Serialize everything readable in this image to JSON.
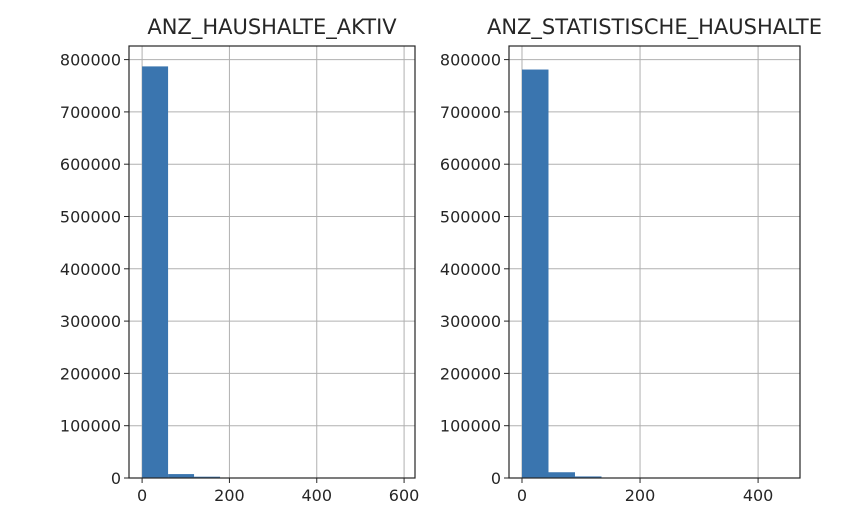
{
  "chart_data": [
    {
      "type": "bar",
      "title": "ANZ_HAUSHALTE_AKTIV",
      "xlabel": "",
      "ylabel": "",
      "bin_edges": [
        0,
        59.5,
        119,
        178.5,
        238,
        297.5,
        357,
        416.5,
        476,
        535.5,
        595
      ],
      "values": [
        787000,
        7500,
        2500,
        400,
        150,
        80,
        40,
        20,
        10,
        5
      ],
      "xlim": [
        -30,
        625
      ],
      "ylim": [
        0,
        826000
      ],
      "xticks": [
        0,
        200,
        400,
        600
      ],
      "xtick_labels": [
        "0",
        "200",
        "400",
        "600"
      ],
      "yticks": [
        0,
        100000,
        200000,
        300000,
        400000,
        500000,
        600000,
        700000,
        800000
      ],
      "ytick_labels": [
        "0",
        "100000",
        "200000",
        "300000",
        "400000",
        "500000",
        "600000",
        "700000",
        "800000"
      ],
      "grid": true,
      "color": "#3a75af"
    },
    {
      "type": "bar",
      "title": "ANZ_STATISTISCHE_HAUSHALTE",
      "xlabel": "",
      "ylabel": "",
      "bin_edges": [
        0,
        44.9,
        89.8,
        134.7,
        179.6,
        224.5,
        269.4,
        314.3,
        359.2,
        404.1,
        449
      ],
      "values": [
        781000,
        11000,
        3000,
        600,
        200,
        90,
        40,
        20,
        10,
        5
      ],
      "xlim": [
        -22,
        471
      ],
      "ylim": [
        0,
        826000
      ],
      "xticks": [
        0,
        200,
        400
      ],
      "xtick_labels": [
        "0",
        "200",
        "400"
      ],
      "yticks": [
        0,
        100000,
        200000,
        300000,
        400000,
        500000,
        600000,
        700000,
        800000
      ],
      "ytick_labels": [
        "0",
        "100000",
        "200000",
        "300000",
        "400000",
        "500000",
        "600000",
        "700000",
        "800000"
      ],
      "grid": true,
      "color": "#3a75af"
    }
  ]
}
